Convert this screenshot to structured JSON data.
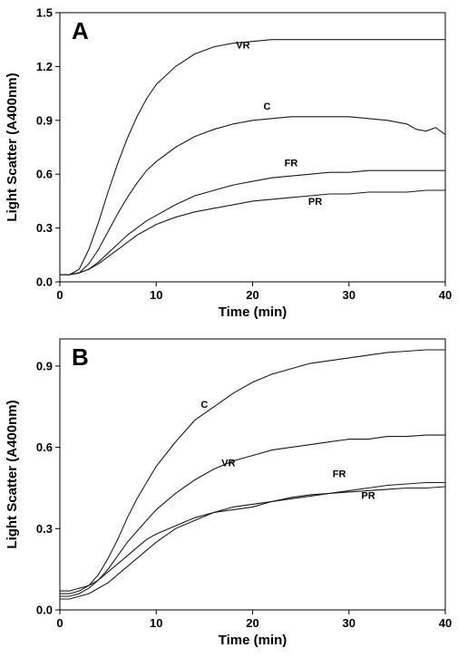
{
  "chart_data": [
    {
      "panel": "A",
      "type": "line",
      "xlabel": "Time (min)",
      "ylabel": "Light Scatter (A400nm)",
      "xlim": [
        0,
        40
      ],
      "ylim": [
        0,
        1.5
      ],
      "xticks": [
        0,
        10,
        20,
        30,
        40
      ],
      "yticks": [
        0.0,
        0.3,
        0.6,
        0.9,
        1.2,
        1.5
      ],
      "grid": false,
      "series": [
        {
          "name": "VR",
          "x": [
            0,
            1,
            2,
            3,
            4,
            5,
            6,
            7,
            8,
            9,
            10,
            12,
            14,
            16,
            18,
            20,
            22,
            24,
            26,
            28,
            30,
            32,
            34,
            36,
            38,
            40
          ],
          "y": [
            0.04,
            0.04,
            0.07,
            0.18,
            0.33,
            0.5,
            0.66,
            0.8,
            0.92,
            1.02,
            1.1,
            1.2,
            1.27,
            1.31,
            1.33,
            1.34,
            1.35,
            1.35,
            1.35,
            1.35,
            1.35,
            1.35,
            1.35,
            1.35,
            1.35,
            1.35
          ]
        },
        {
          "name": "C",
          "x": [
            0,
            1,
            2,
            3,
            4,
            5,
            6,
            7,
            8,
            9,
            10,
            12,
            14,
            16,
            18,
            20,
            22,
            24,
            26,
            28,
            30,
            32,
            34,
            36,
            37,
            38,
            39,
            40
          ],
          "y": [
            0.04,
            0.04,
            0.05,
            0.1,
            0.18,
            0.28,
            0.38,
            0.47,
            0.55,
            0.62,
            0.67,
            0.75,
            0.81,
            0.85,
            0.88,
            0.9,
            0.91,
            0.92,
            0.92,
            0.92,
            0.92,
            0.91,
            0.9,
            0.88,
            0.85,
            0.84,
            0.86,
            0.82
          ]
        },
        {
          "name": "FR",
          "x": [
            0,
            1,
            2,
            3,
            4,
            5,
            6,
            7,
            8,
            9,
            10,
            12,
            14,
            16,
            18,
            20,
            22,
            24,
            26,
            28,
            30,
            32,
            34,
            36,
            38,
            40
          ],
          "y": [
            0.04,
            0.04,
            0.05,
            0.07,
            0.11,
            0.16,
            0.21,
            0.26,
            0.3,
            0.34,
            0.37,
            0.43,
            0.48,
            0.51,
            0.54,
            0.56,
            0.58,
            0.59,
            0.6,
            0.61,
            0.61,
            0.62,
            0.62,
            0.62,
            0.62,
            0.62
          ]
        },
        {
          "name": "PR",
          "x": [
            0,
            1,
            2,
            3,
            4,
            5,
            6,
            7,
            8,
            9,
            10,
            12,
            14,
            16,
            18,
            20,
            22,
            24,
            26,
            28,
            30,
            32,
            34,
            36,
            38,
            40
          ],
          "y": [
            0.04,
            0.04,
            0.05,
            0.07,
            0.1,
            0.14,
            0.18,
            0.22,
            0.26,
            0.29,
            0.32,
            0.36,
            0.39,
            0.41,
            0.43,
            0.45,
            0.46,
            0.47,
            0.48,
            0.49,
            0.49,
            0.5,
            0.5,
            0.5,
            0.51,
            0.51
          ]
        }
      ],
      "annotations": [
        {
          "text": "VR",
          "x": 19,
          "y": 1.3
        },
        {
          "text": "C",
          "x": 21.5,
          "y": 0.96
        },
        {
          "text": "FR",
          "x": 24,
          "y": 0.645
        },
        {
          "text": "PR",
          "x": 26.5,
          "y": 0.43
        }
      ]
    },
    {
      "panel": "B",
      "type": "line",
      "xlabel": "Time (min)",
      "ylabel": "Light Scatter (A400nm)",
      "xlim": [
        0,
        40
      ],
      "ylim": [
        0,
        1.0
      ],
      "xticks": [
        0,
        10,
        20,
        30,
        40
      ],
      "yticks": [
        0.0,
        0.3,
        0.6,
        0.9
      ],
      "grid": false,
      "series": [
        {
          "name": "C",
          "x": [
            0,
            1,
            2,
            3,
            4,
            5,
            6,
            7,
            8,
            9,
            10,
            12,
            14,
            16,
            18,
            20,
            22,
            24,
            26,
            28,
            30,
            32,
            34,
            36,
            38,
            40
          ],
          "y": [
            0.06,
            0.06,
            0.07,
            0.09,
            0.13,
            0.19,
            0.26,
            0.34,
            0.41,
            0.47,
            0.53,
            0.62,
            0.7,
            0.75,
            0.8,
            0.84,
            0.87,
            0.89,
            0.91,
            0.92,
            0.93,
            0.94,
            0.95,
            0.955,
            0.96,
            0.96
          ]
        },
        {
          "name": "VR",
          "x": [
            0,
            1,
            2,
            3,
            4,
            5,
            6,
            7,
            8,
            9,
            10,
            12,
            14,
            16,
            18,
            20,
            22,
            24,
            26,
            28,
            30,
            32,
            34,
            36,
            38,
            40
          ],
          "y": [
            0.05,
            0.05,
            0.06,
            0.08,
            0.11,
            0.15,
            0.2,
            0.25,
            0.29,
            0.33,
            0.37,
            0.43,
            0.48,
            0.52,
            0.55,
            0.57,
            0.59,
            0.6,
            0.61,
            0.62,
            0.63,
            0.63,
            0.64,
            0.64,
            0.645,
            0.645
          ]
        },
        {
          "name": "FR",
          "x": [
            0,
            1,
            2,
            3,
            4,
            5,
            6,
            7,
            8,
            9,
            10,
            12,
            14,
            16,
            18,
            20,
            22,
            24,
            26,
            28,
            30,
            32,
            34,
            36,
            38,
            40
          ],
          "y": [
            0.07,
            0.07,
            0.08,
            0.09,
            0.11,
            0.14,
            0.17,
            0.2,
            0.23,
            0.26,
            0.28,
            0.31,
            0.34,
            0.36,
            0.37,
            0.38,
            0.4,
            0.41,
            0.42,
            0.43,
            0.44,
            0.45,
            0.46,
            0.465,
            0.47,
            0.47
          ]
        },
        {
          "name": "PR",
          "x": [
            0,
            1,
            2,
            3,
            4,
            5,
            6,
            7,
            8,
            9,
            10,
            12,
            14,
            16,
            18,
            20,
            22,
            24,
            26,
            28,
            30,
            32,
            34,
            36,
            38,
            40
          ],
          "y": [
            0.04,
            0.04,
            0.05,
            0.06,
            0.08,
            0.1,
            0.13,
            0.16,
            0.19,
            0.22,
            0.25,
            0.3,
            0.33,
            0.36,
            0.38,
            0.39,
            0.4,
            0.415,
            0.425,
            0.43,
            0.435,
            0.44,
            0.445,
            0.45,
            0.45,
            0.455
          ]
        }
      ],
      "annotations": [
        {
          "text": "C",
          "x": 15,
          "y": 0.745
        },
        {
          "text": "VR",
          "x": 17.5,
          "y": 0.53
        },
        {
          "text": "FR",
          "x": 29,
          "y": 0.49
        },
        {
          "text": "PR",
          "x": 32,
          "y": 0.41
        }
      ]
    }
  ]
}
